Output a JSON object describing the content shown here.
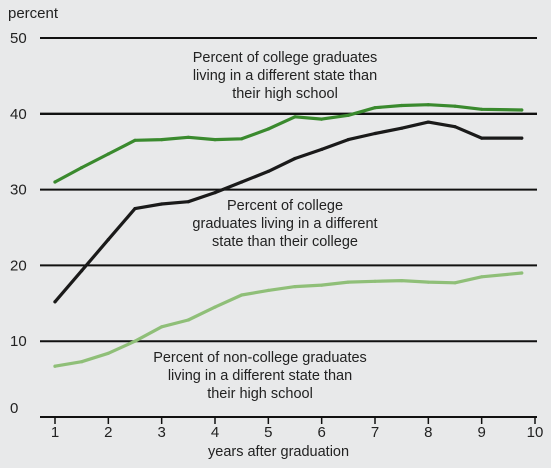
{
  "chart_data": {
    "type": "line",
    "ylabel": "percent",
    "xlabel": "years after graduation",
    "ylim": [
      0,
      50
    ],
    "xlim": [
      1,
      10
    ],
    "y_ticks": [
      0,
      10,
      20,
      30,
      40,
      50
    ],
    "x_ticks": [
      1,
      2,
      3,
      4,
      5,
      6,
      7,
      8,
      9,
      10
    ],
    "grid": true,
    "series": [
      {
        "color": "#3a8a2e",
        "points": [
          [
            1,
            31.0
          ],
          [
            1.5,
            32.9
          ],
          [
            2,
            34.7
          ],
          [
            2.5,
            36.5
          ],
          [
            3,
            36.6
          ],
          [
            3.5,
            36.9
          ],
          [
            4,
            36.6
          ],
          [
            4.5,
            36.7
          ],
          [
            5,
            38.0
          ],
          [
            5.5,
            39.6
          ],
          [
            6,
            39.3
          ],
          [
            6.5,
            39.8
          ],
          [
            7,
            40.8
          ],
          [
            7.5,
            41.1
          ],
          [
            8,
            41.2
          ],
          [
            8.5,
            41.0
          ],
          [
            9,
            40.6
          ],
          [
            9.75,
            40.5
          ]
        ]
      },
      {
        "color": "#1a1a1a",
        "points": [
          [
            1,
            15.2
          ],
          [
            1.5,
            19.3
          ],
          [
            2,
            23.4
          ],
          [
            2.5,
            27.5
          ],
          [
            3,
            28.1
          ],
          [
            3.5,
            28.4
          ],
          [
            4,
            29.6
          ],
          [
            4.5,
            31.0
          ],
          [
            5,
            32.4
          ],
          [
            5.5,
            34.1
          ],
          [
            6,
            35.3
          ],
          [
            6.5,
            36.6
          ],
          [
            7,
            37.4
          ],
          [
            7.5,
            38.1
          ],
          [
            8,
            38.9
          ],
          [
            8.5,
            38.3
          ],
          [
            9,
            36.8
          ],
          [
            9.75,
            36.8
          ]
        ]
      },
      {
        "color": "#8fbf78",
        "points": [
          [
            1,
            6.7
          ],
          [
            1.5,
            7.3
          ],
          [
            2,
            8.4
          ],
          [
            2.5,
            10.0
          ],
          [
            3,
            11.9
          ],
          [
            3.5,
            12.8
          ],
          [
            4,
            14.5
          ],
          [
            4.5,
            16.1
          ],
          [
            5,
            16.7
          ],
          [
            5.5,
            17.2
          ],
          [
            6,
            17.4
          ],
          [
            6.5,
            17.8
          ],
          [
            7,
            17.9
          ],
          [
            7.5,
            18.0
          ],
          [
            8,
            17.8
          ],
          [
            8.5,
            17.7
          ],
          [
            9,
            18.5
          ],
          [
            9.75,
            19.0
          ]
        ]
      }
    ],
    "annotations": [
      {
        "lines": [
          "Percent of college graduates",
          "living in a different state than",
          "their high school"
        ]
      },
      {
        "lines": [
          "Percent of college",
          "graduates living in a different",
          "state than their college"
        ]
      },
      {
        "lines": [
          "Percent of non-college graduates",
          "living in a different state than",
          "their high school"
        ]
      }
    ]
  }
}
